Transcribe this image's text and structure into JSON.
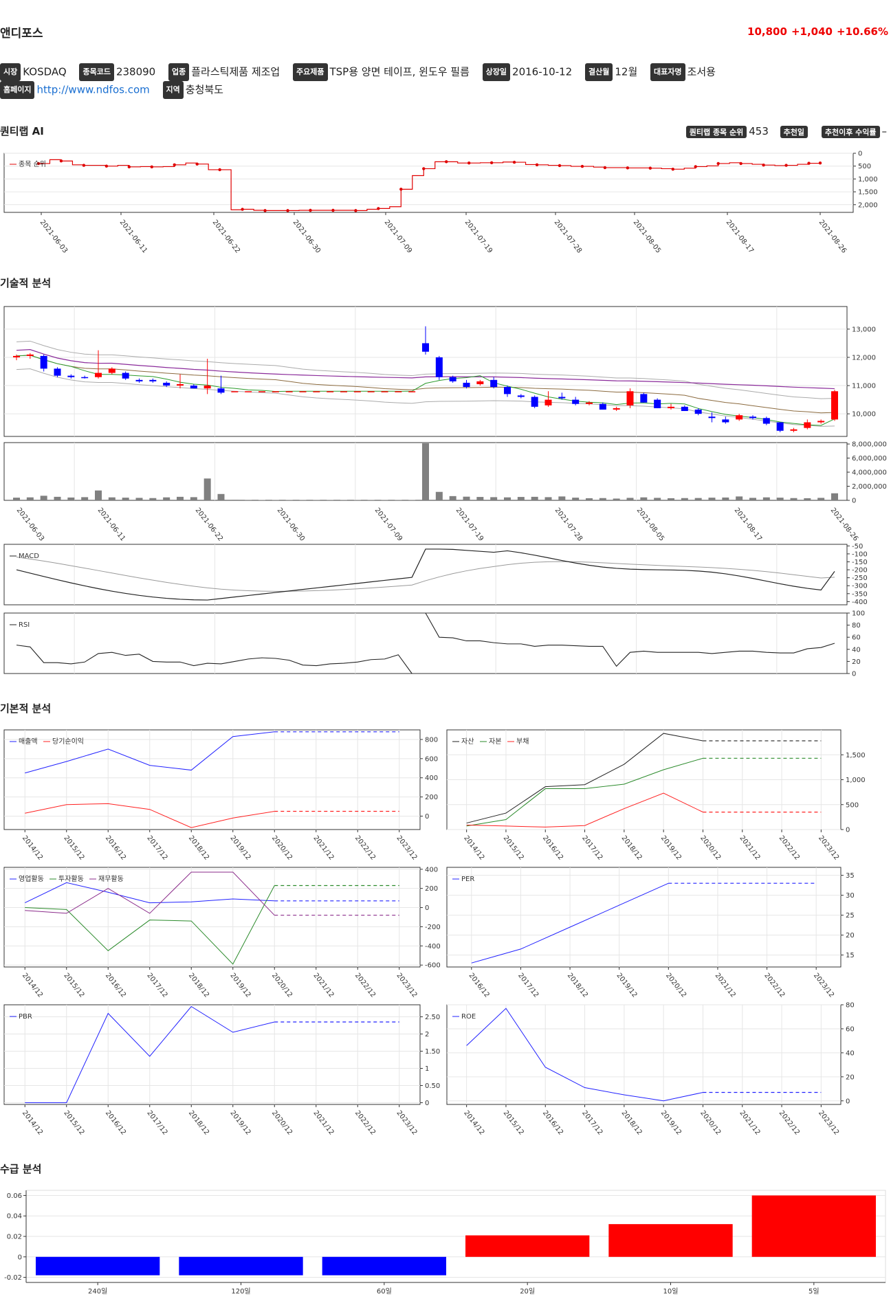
{
  "header": {
    "name": "앤디포스",
    "price": "10,800",
    "change": "+1,040",
    "change_pct": "+10.66%",
    "up_color": "#e00000"
  },
  "info": {
    "market_label": "시장",
    "market": "KOSDAQ",
    "code_label": "종목코드",
    "code": "238090",
    "industry_label": "업종",
    "industry": "플라스틱제품 제조업",
    "product_label": "주요제품",
    "product": "TSP용 양면 테이프, 윈도우 필름",
    "listing_label": "상장일",
    "listing": "2016-10-12",
    "fiscal_label": "결산월",
    "fiscal": "12월",
    "ceo_label": "대표자명",
    "ceo": "조서용",
    "homepage_label": "홈페이지",
    "homepage": "http://www.ndfos.com",
    "region_label": "지역",
    "region": "충청북도"
  },
  "ai": {
    "section_title": "퀀티랩 AI",
    "rank_label": "퀀티랩 종목 순위",
    "rank": "453",
    "rec_date_label": "추천일",
    "rec_return_label": "추천이후 수익률",
    "rec_return": "–"
  },
  "sections": {
    "technical": "기술적 분석",
    "fundamental": "기본적 분석",
    "supply": "수급 분석"
  },
  "date_ticks": [
    "2021-06-03",
    "2021-06-11",
    "2021-06-22",
    "2021-06-30",
    "2021-07-09",
    "2021-07-19",
    "2021-07-28",
    "2021-08-05",
    "2021-08-17",
    "2021-08-26"
  ],
  "year_ticks": [
    "2014/12",
    "2015/12",
    "2016/12",
    "2017/12",
    "2018/12",
    "2019/12",
    "2020/12",
    "2021/12",
    "2022/12",
    "2023/12"
  ],
  "year_ticks_per": [
    "2016/12",
    "2017/12",
    "2018/12",
    "2019/12",
    "2020/12",
    "2021/12",
    "2022/12",
    "2023/12"
  ],
  "chart_data": [
    {
      "type": "line",
      "name": "rank",
      "series": [
        {
          "name": "종목 순위",
          "color": "#e00000",
          "values": [
            400,
            250,
            300,
            450,
            470,
            470,
            500,
            470,
            530,
            520,
            530,
            520,
            450,
            380,
            420,
            640,
            640,
            2200,
            2180,
            2220,
            2230,
            2230,
            2230,
            2220,
            2220,
            2220,
            2220,
            2220,
            2230,
            2180,
            2150,
            2080,
            1400,
            870,
            600,
            330,
            330,
            380,
            380,
            370,
            370,
            340,
            350,
            440,
            450,
            470,
            480,
            510,
            510,
            540,
            560,
            560,
            570,
            570,
            580,
            600,
            620,
            580,
            520,
            490,
            400,
            370,
            400,
            430,
            460,
            480,
            470,
            430,
            390,
            380
          ]
        }
      ],
      "yticks": [
        "0",
        "500",
        "1,000",
        "1,500",
        "2,000"
      ],
      "ylim": [
        0,
        2300
      ],
      "y_reversed": true
    },
    {
      "type": "candlestick",
      "name": "price",
      "yticks": [
        "10,000",
        "11,000",
        "12,000",
        "13,000"
      ],
      "ylim": [
        9200,
        13800
      ],
      "candles": [
        [
          12000,
          12100,
          11900,
          12050
        ],
        [
          12050,
          12150,
          11950,
          12100
        ],
        [
          12050,
          12100,
          11500,
          11600
        ],
        [
          11600,
          11650,
          11300,
          11350
        ],
        [
          11350,
          11400,
          11250,
          11300
        ],
        [
          11300,
          11350,
          11250,
          11280
        ],
        [
          11300,
          12250,
          11250,
          11450
        ],
        [
          11450,
          11650,
          11400,
          11600
        ],
        [
          11450,
          11500,
          11200,
          11250
        ],
        [
          11200,
          11250,
          11100,
          11150
        ],
        [
          11200,
          11250,
          11100,
          11150
        ],
        [
          11100,
          11150,
          10950,
          11000
        ],
        [
          11000,
          11400,
          10900,
          11050
        ],
        [
          11000,
          11050,
          10900,
          10900
        ],
        [
          10900,
          11950,
          10700,
          11000
        ],
        [
          10900,
          11350,
          10700,
          10750
        ],
        [
          10800,
          10800,
          10800,
          10800
        ],
        [
          10800,
          10800,
          10800,
          10800
        ],
        [
          10800,
          10800,
          10800,
          10800
        ],
        [
          10800,
          10800,
          10800,
          10800
        ],
        [
          10800,
          10800,
          10800,
          10800
        ],
        [
          10800,
          10800,
          10800,
          10800
        ],
        [
          10800,
          10800,
          10800,
          10800
        ],
        [
          10800,
          10800,
          10800,
          10800
        ],
        [
          10800,
          10800,
          10800,
          10800
        ],
        [
          10800,
          10800,
          10800,
          10800
        ],
        [
          10800,
          10800,
          10800,
          10800
        ],
        [
          10800,
          10800,
          10800,
          10800
        ],
        [
          10800,
          10800,
          10800,
          10800
        ],
        [
          10800,
          10800,
          10800,
          10800
        ],
        [
          12500,
          13100,
          12100,
          12200
        ],
        [
          12000,
          12050,
          11200,
          11300
        ],
        [
          11300,
          11350,
          11100,
          11150
        ],
        [
          11100,
          11200,
          10900,
          10950
        ],
        [
          11050,
          11200,
          11000,
          11150
        ],
        [
          11200,
          11300,
          10900,
          10950
        ],
        [
          10950,
          11000,
          10600,
          10700
        ],
        [
          10650,
          10700,
          10550,
          10600
        ],
        [
          10600,
          10650,
          10200,
          10250
        ],
        [
          10300,
          10800,
          10250,
          10500
        ],
        [
          10600,
          10750,
          10500,
          10550
        ],
        [
          10500,
          10600,
          10300,
          10350
        ],
        [
          10350,
          10450,
          10300,
          10400
        ],
        [
          10350,
          10400,
          10150,
          10150
        ],
        [
          10150,
          10250,
          10100,
          10200
        ],
        [
          10300,
          10900,
          10200,
          10800
        ],
        [
          10700,
          10750,
          10400,
          10400
        ],
        [
          10500,
          10550,
          10200,
          10200
        ],
        [
          10200,
          10350,
          10150,
          10250
        ],
        [
          10250,
          10300,
          10100,
          10100
        ],
        [
          10150,
          10200,
          9950,
          10000
        ],
        [
          9900,
          10050,
          9700,
          9850
        ],
        [
          9800,
          9900,
          9650,
          9700
        ],
        [
          9800,
          10000,
          9750,
          9950
        ],
        [
          9900,
          9950,
          9800,
          9850
        ],
        [
          9850,
          9900,
          9600,
          9650
        ],
        [
          9700,
          9700,
          9350,
          9400
        ],
        [
          9400,
          9500,
          9350,
          9450
        ],
        [
          9500,
          9800,
          9450,
          9700
        ],
        [
          9700,
          9800,
          9650,
          9750
        ],
        [
          9800,
          10850,
          9750,
          10800
        ]
      ]
    },
    {
      "type": "bar",
      "name": "volume",
      "yticks": [
        "0",
        "2,000,000",
        "4,000,000",
        "6,000,000",
        "8,000,000"
      ],
      "ylim": [
        0,
        8200000
      ],
      "values": [
        380000,
        420000,
        650000,
        500000,
        400000,
        450000,
        1400000,
        420000,
        380000,
        350000,
        320000,
        420000,
        500000,
        450000,
        3100000,
        900000,
        80000,
        60000,
        50000,
        40000,
        40000,
        40000,
        40000,
        40000,
        40000,
        40000,
        40000,
        40000,
        40000,
        40000,
        8100000,
        1200000,
        600000,
        520000,
        480000,
        450000,
        420000,
        480000,
        500000,
        450000,
        550000,
        380000,
        300000,
        320000,
        250000,
        350000,
        420000,
        350000,
        300000,
        320000,
        330000,
        380000,
        400000,
        550000,
        350000,
        420000,
        380000,
        320000,
        300000,
        350000,
        1000000
      ]
    },
    {
      "type": "line",
      "name": "macd",
      "series": [
        {
          "name": "MACD",
          "color": "#222"
        }
      ],
      "yticks": [
        "-50",
        "-100",
        "-150",
        "-200",
        "-250",
        "-300",
        "-350",
        "-400"
      ],
      "ylim": [
        -420,
        -40
      ]
    },
    {
      "type": "line",
      "name": "rsi",
      "series": [
        {
          "name": "RSI",
          "color": "#222"
        }
      ],
      "yticks": [
        "0",
        "20",
        "40",
        "60",
        "80",
        "100"
      ],
      "ylim": [
        0,
        100
      ]
    },
    {
      "type": "line",
      "name": "sales",
      "series": [
        {
          "name": "매출액",
          "color": "#2020ff",
          "values": [
            450,
            570,
            700,
            530,
            480,
            830,
            880
          ]
        },
        {
          "name": "당기순이익",
          "color": "#ff2020",
          "values": [
            30,
            120,
            130,
            70,
            -120,
            -20,
            50
          ]
        }
      ],
      "yticks": [
        "0",
        "200",
        "400",
        "600",
        "800"
      ],
      "ylim": [
        -140,
        900
      ]
    },
    {
      "type": "line",
      "name": "balance",
      "series": [
        {
          "name": "자산",
          "color": "#222",
          "values": [
            130,
            330,
            860,
            900,
            1310,
            1930,
            1780
          ]
        },
        {
          "name": "자본",
          "color": "#2a8a2a",
          "values": [
            70,
            200,
            820,
            820,
            910,
            1200,
            1430
          ]
        },
        {
          "name": "부채",
          "color": "#ff2020",
          "values": [
            90,
            70,
            50,
            80,
            420,
            730,
            350
          ]
        }
      ],
      "yticks": [
        "0",
        "500",
        "1,000",
        "1,500"
      ],
      "ylim": [
        0,
        2000
      ]
    },
    {
      "type": "line",
      "name": "cashflow",
      "series": [
        {
          "name": "영업활동",
          "color": "#2020ff",
          "values": [
            50,
            260,
            160,
            50,
            60,
            90,
            70
          ]
        },
        {
          "name": "투자활동",
          "color": "#2a8a2a",
          "values": [
            0,
            -20,
            -450,
            -130,
            -140,
            -590,
            230
          ]
        },
        {
          "name": "재무활동",
          "color": "#8a2a8a",
          "values": [
            -30,
            -60,
            200,
            -60,
            370,
            370,
            -80
          ]
        }
      ],
      "yticks": [
        "-600",
        "-400",
        "-200",
        "0",
        "200",
        "400"
      ],
      "ylim": [
        -620,
        420
      ]
    },
    {
      "type": "line",
      "name": "per",
      "series": [
        {
          "name": "PER",
          "color": "#2020ff",
          "values": [
            13,
            16.5,
            22,
            27.5,
            33
          ]
        }
      ],
      "yticks": [
        "15",
        "20",
        "25",
        "30",
        "35"
      ],
      "ylim": [
        12,
        37
      ]
    },
    {
      "type": "line",
      "name": "pbr",
      "series": [
        {
          "name": "PBR",
          "color": "#2020ff",
          "values": [
            0,
            0,
            2.6,
            1.35,
            2.8,
            2.05,
            2.35
          ]
        }
      ],
      "yticks": [
        "0",
        "0.50",
        "1",
        "1.50",
        "2",
        "2.50"
      ],
      "ylim": [
        -0.05,
        2.85
      ]
    },
    {
      "type": "line",
      "name": "roe",
      "series": [
        {
          "name": "ROE",
          "color": "#2020ff",
          "values": [
            46,
            77,
            28,
            11,
            5,
            0,
            7
          ]
        }
      ],
      "yticks": [
        "0",
        "20",
        "40",
        "60",
        "80"
      ],
      "ylim": [
        -3,
        80
      ]
    },
    {
      "type": "bar",
      "name": "supply",
      "categories": [
        "240일",
        "120일",
        "60일",
        "20일",
        "10일",
        "5일"
      ],
      "values": [
        -0.018,
        -0.018,
        -0.018,
        0.021,
        0.032,
        0.06
      ],
      "yticks": [
        "-0.02",
        "0",
        "0.02",
        "0.04",
        "0.06"
      ],
      "ylim": [
        -0.025,
        0.065
      ],
      "pos_color": "#ff0000",
      "neg_color": "#0000ff"
    }
  ]
}
